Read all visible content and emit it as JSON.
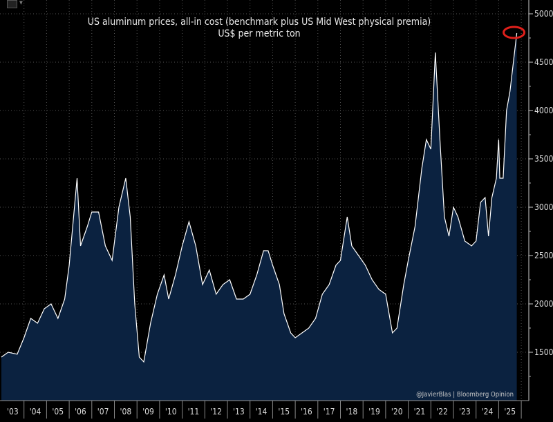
{
  "chart_data": {
    "type": "area",
    "title": "US aluminum prices, all-in cost (benchmark plus US Mid West physical premia)",
    "subtitle": "US$ per metric ton",
    "credit": "@JavierBlas | Bloomberg Opinion",
    "xlabel": "",
    "ylabel": "",
    "xlim": [
      2003,
      2026.3
    ],
    "ylim": [
      1000,
      5050
    ],
    "y_ticks": [
      1500,
      2000,
      2500,
      3000,
      3500,
      4000,
      4500,
      5000
    ],
    "x_tick_labels": [
      "'03",
      "'04",
      "'05",
      "'06",
      "'07",
      "'08",
      "'09",
      "'10",
      "'11",
      "'12",
      "'13",
      "'14",
      "'15",
      "'16",
      "'17",
      "'18",
      "'19",
      "'20",
      "'21",
      "'22",
      "'23",
      "'24",
      "'25"
    ],
    "grid": true,
    "y_axis_side": "right",
    "colors": {
      "background": "#000000",
      "fill": "#0b2240",
      "line": "#ffffff",
      "annotation": "#e0201b"
    },
    "annotation": "red circle around latest peak",
    "series": [
      {
        "x": [
          2003.0,
          2003.3,
          2003.7,
          2004.0,
          2004.3,
          2004.6,
          2004.9,
          2005.2,
          2005.5,
          2005.8,
          2006.0,
          2006.35,
          2006.5,
          2006.8,
          2007.0,
          2007.3,
          2007.6,
          2007.9,
          2008.2,
          2008.5,
          2008.7,
          2008.9,
          2009.1,
          2009.3,
          2009.6,
          2009.9,
          2010.2,
          2010.4,
          2010.7,
          2011.0,
          2011.3,
          2011.6,
          2011.9,
          2012.2,
          2012.5,
          2012.8,
          2013.1,
          2013.4,
          2013.7,
          2014.0,
          2014.3,
          2014.6,
          2014.8,
          2015.0,
          2015.3,
          2015.5,
          2015.8,
          2016.0,
          2016.3,
          2016.6,
          2016.9,
          2017.2,
          2017.5,
          2017.8,
          2018.0,
          2018.3,
          2018.5,
          2018.8,
          2019.1,
          2019.4,
          2019.7,
          2020.0,
          2020.3,
          2020.5,
          2020.8,
          2021.0,
          2021.3,
          2021.6,
          2021.8,
          2022.0,
          2022.2,
          2022.4,
          2022.6,
          2022.8,
          2023.0,
          2023.2,
          2023.5,
          2023.8,
          2024.0,
          2024.2,
          2024.4,
          2024.55,
          2024.7,
          2024.9,
          2025.0,
          2025.05,
          2025.2,
          2025.35,
          2025.5,
          2025.65,
          2025.8
        ],
        "y": [
          1450,
          1500,
          1480,
          1650,
          1850,
          1800,
          1950,
          2000,
          1850,
          2050,
          2400,
          3300,
          2600,
          2800,
          2950,
          2950,
          2600,
          2450,
          3000,
          3300,
          2900,
          2000,
          1450,
          1400,
          1800,
          2100,
          2300,
          2050,
          2300,
          2600,
          2850,
          2600,
          2200,
          2350,
          2100,
          2200,
          2250,
          2050,
          2050,
          2100,
          2300,
          2550,
          2550,
          2400,
          2200,
          1900,
          1700,
          1650,
          1700,
          1750,
          1850,
          2100,
          2200,
          2400,
          2450,
          2900,
          2600,
          2500,
          2400,
          2250,
          2150,
          2100,
          1700,
          1750,
          2200,
          2450,
          2800,
          3400,
          3700,
          3600,
          4600,
          3700,
          2900,
          2700,
          3000,
          2900,
          2650,
          2600,
          2650,
          3050,
          3100,
          2700,
          3100,
          3300,
          3700,
          3300,
          3300,
          4000,
          4200,
          4500,
          4800
        ]
      }
    ]
  }
}
